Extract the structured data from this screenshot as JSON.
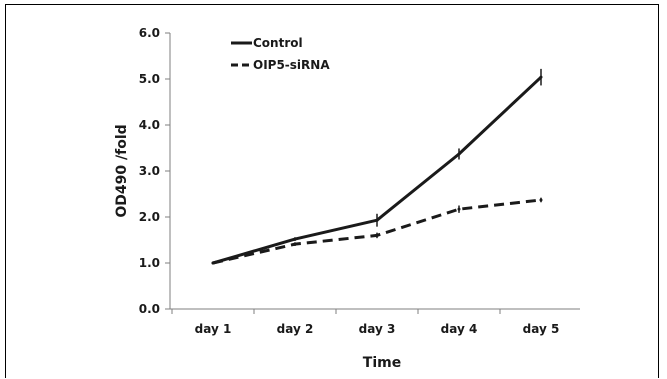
{
  "chart_data": {
    "type": "line",
    "title": "",
    "xlabel": "Time",
    "ylabel": "OD490 /fold",
    "categories": [
      "day 1",
      "day 2",
      "day 3",
      "day 4",
      "day 5"
    ],
    "ylim": [
      0,
      6
    ],
    "yticks": [
      "0.0",
      "1.0",
      "2.0",
      "3.0",
      "4.0",
      "5.0",
      "6.0"
    ],
    "grid": false,
    "legend_position": "top-left",
    "series": [
      {
        "name": "Control",
        "values": [
          1.0,
          1.52,
          1.93,
          3.37,
          5.04
        ],
        "errors": [
          0.03,
          0.04,
          0.14,
          0.12,
          0.18
        ],
        "line_style": "solid",
        "color": "#1a1a1a"
      },
      {
        "name": "OIP5-siRNA",
        "values": [
          1.0,
          1.41,
          1.6,
          2.17,
          2.37
        ],
        "errors": [
          0.03,
          0.04,
          0.06,
          0.08,
          0.05
        ],
        "line_style": "dashed",
        "color": "#1a1a1a"
      }
    ]
  }
}
